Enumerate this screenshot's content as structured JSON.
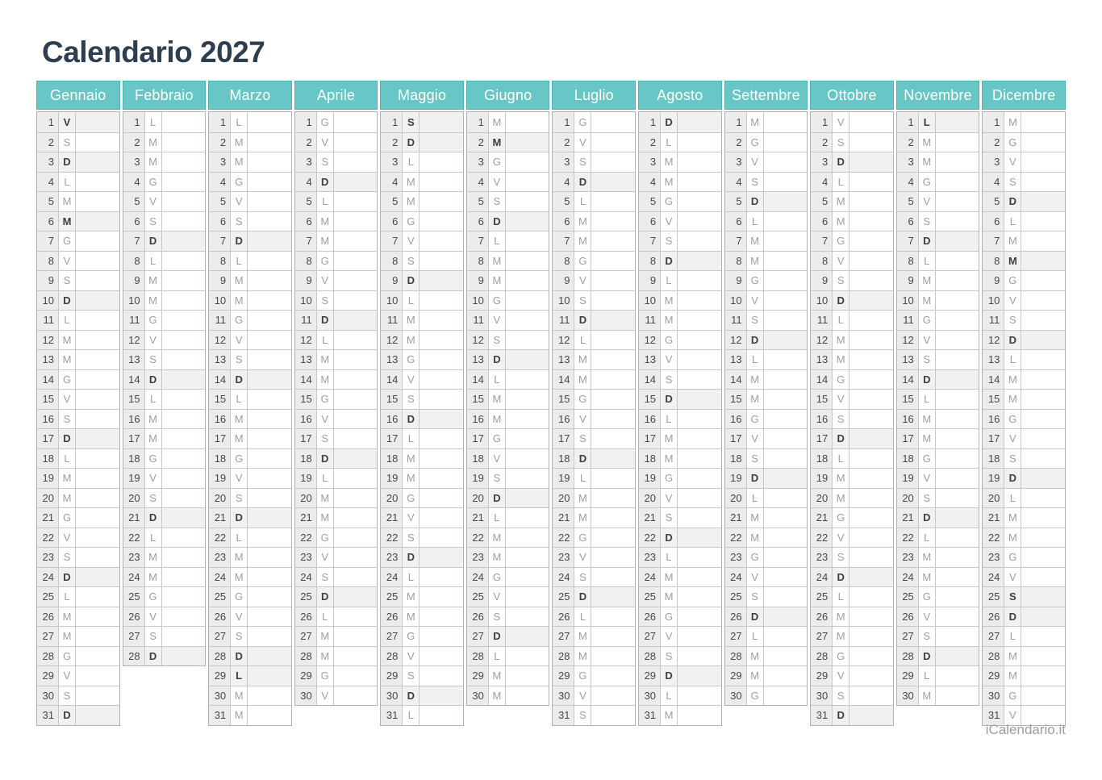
{
  "page": {
    "title": "Calendario 2027",
    "footer": "iCalendario.it"
  },
  "colors": {
    "header_teal": "#68c6c7",
    "header_border": "#4fb4b6",
    "highlight_bg": "#f1f1f1",
    "number_cell_bg": "#ececec",
    "border": "#c6c9cb",
    "title_color": "#2d3e50"
  },
  "calendar": {
    "year": "2027",
    "weekday_letter_note": "L=lunedi M=martedi M=mercoledi G=giovedi V=venerdi S=sabato D=domenica",
    "months": [
      {
        "name": "Gennaio",
        "letters": "VSDLMMGVSDLMMGVSDLMMGVSDLMMGVSD",
        "highlighted": [
          1,
          3,
          6,
          10,
          17,
          24,
          31
        ]
      },
      {
        "name": "Febbraio",
        "letters": "LMMGVSDLMMGVSDLMMGVSDLMMGVSD",
        "highlighted": [
          7,
          14,
          21,
          28
        ]
      },
      {
        "name": "Marzo",
        "letters": "LMMGVSDLMMGVSDLMMGVSDLMMGVSDLMM",
        "highlighted": [
          7,
          14,
          21,
          28,
          29
        ]
      },
      {
        "name": "Aprile",
        "letters": "GVSDLMMGVSDLMMGVSDLMMGVSDLMMGV",
        "highlighted": [
          4,
          11,
          18,
          25
        ]
      },
      {
        "name": "Maggio",
        "letters": "SDLMMGVSDLMMGVSDLMMGVSDLMMGVSDL",
        "highlighted": [
          1,
          2,
          9,
          16,
          23,
          30
        ]
      },
      {
        "name": "Giugno",
        "letters": "MMGVSDLMMGVSDLMMGVSDLMMGVSDLMM",
        "highlighted": [
          2,
          6,
          13,
          20,
          27
        ]
      },
      {
        "name": "Luglio",
        "letters": "GVSDLMMGVSDLMMGVSDLMMGVSDLMMGVS",
        "highlighted": [
          4,
          11,
          18,
          25
        ]
      },
      {
        "name": "Agosto",
        "letters": "DLMMGVSDLMMGVSDLMMGVSDLMMGVSDLM",
        "highlighted": [
          1,
          8,
          15,
          22,
          29
        ]
      },
      {
        "name": "Settembre",
        "letters": "MGVSDLMMGVSDLMMGVSDLMMGVSDLMMG",
        "highlighted": [
          5,
          12,
          19,
          26
        ]
      },
      {
        "name": "Ottobre",
        "letters": "VSDLMMGVSDLMMGVSDLMMGVSDLMMGVSD",
        "highlighted": [
          3,
          10,
          17,
          24,
          31
        ]
      },
      {
        "name": "Novembre",
        "letters": "LMMGVSDLMMGVSDLMMGVSDLMMGVSDLM",
        "highlighted": [
          1,
          7,
          14,
          21,
          28
        ]
      },
      {
        "name": "Dicembre",
        "letters": "MGVSDLMMGVSDLMMGVSDLMMGVSDLMMGV",
        "highlighted": [
          5,
          8,
          12,
          19,
          25,
          26
        ]
      }
    ]
  }
}
